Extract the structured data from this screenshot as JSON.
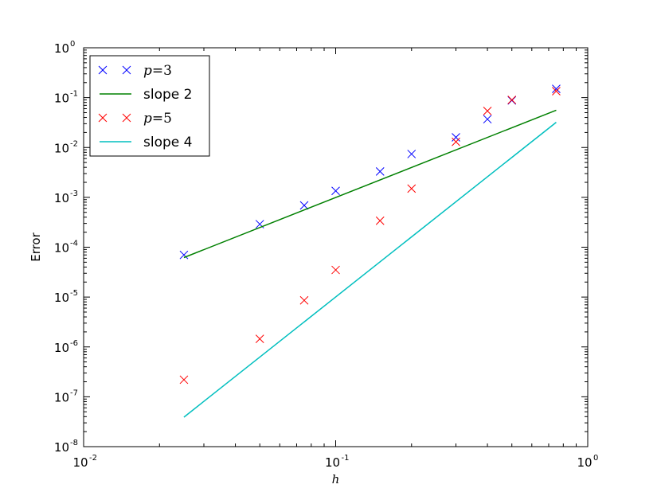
{
  "chart_data": {
    "type": "scatter",
    "xscale": "log",
    "yscale": "log",
    "xlabel": "h",
    "ylabel": "Error",
    "xlim": [
      0.01,
      1
    ],
    "ylim": [
      1e-08,
      1
    ],
    "x_ticks": [
      {
        "value": 0.01,
        "base": "10",
        "exp": "-2"
      },
      {
        "value": 0.1,
        "base": "10",
        "exp": "-1"
      },
      {
        "value": 1,
        "base": "10",
        "exp": "0"
      }
    ],
    "y_ticks": [
      {
        "value": 1e-08,
        "base": "10",
        "exp": "-8"
      },
      {
        "value": 1e-07,
        "base": "10",
        "exp": "-7"
      },
      {
        "value": 1e-06,
        "base": "10",
        "exp": "-6"
      },
      {
        "value": 1e-05,
        "base": "10",
        "exp": "-5"
      },
      {
        "value": 0.0001,
        "base": "10",
        "exp": "-4"
      },
      {
        "value": 0.001,
        "base": "10",
        "exp": "-3"
      },
      {
        "value": 0.01,
        "base": "10",
        "exp": "-2"
      },
      {
        "value": 0.1,
        "base": "10",
        "exp": "-1"
      },
      {
        "value": 1,
        "base": "10",
        "exp": "0"
      }
    ],
    "grid": false,
    "legend_position": "top-left",
    "series": [
      {
        "name": "p=3",
        "legend_var": "p",
        "legend_eq": "=",
        "legend_num": "3",
        "kind": "marker",
        "marker": "x",
        "color": "#0000ff",
        "x": [
          0.025,
          0.05,
          0.075,
          0.1,
          0.15,
          0.2,
          0.3,
          0.4,
          0.5,
          0.75
        ],
        "y": [
          7e-05,
          0.00029,
          0.00069,
          0.00135,
          0.0033,
          0.0074,
          0.016,
          0.037,
          0.088,
          0.15
        ]
      },
      {
        "name": "slope 2",
        "kind": "line",
        "color": "#008000",
        "x": [
          0.025,
          0.75
        ],
        "y": [
          6.2e-05,
          0.056
        ]
      },
      {
        "name": "p=5",
        "legend_var": "p",
        "legend_eq": "=",
        "legend_num": "5",
        "kind": "marker",
        "marker": "x",
        "color": "#ff0000",
        "x": [
          0.025,
          0.05,
          0.075,
          0.1,
          0.15,
          0.2,
          0.3,
          0.4,
          0.5,
          0.75
        ],
        "y": [
          2.2e-07,
          1.45e-06,
          8.6e-06,
          3.5e-05,
          0.00034,
          0.0015,
          0.013,
          0.054,
          0.09,
          0.135
        ]
      },
      {
        "name": "slope 4",
        "kind": "line",
        "color": "#00bfbf",
        "x": [
          0.025,
          0.75
        ],
        "y": [
          3.9e-08,
          0.032
        ]
      }
    ]
  }
}
